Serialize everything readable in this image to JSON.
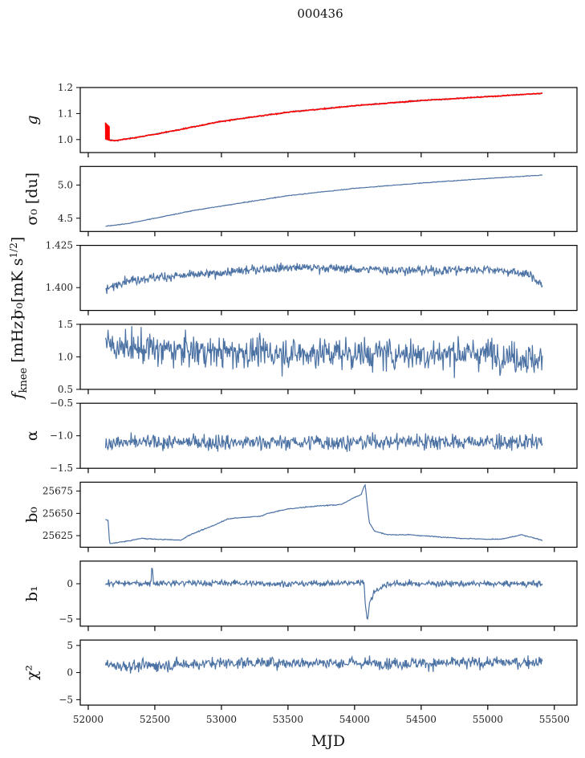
{
  "figure": {
    "title": "000436",
    "xlabel": "MJD"
  },
  "chart_data": {
    "type": "line",
    "title": "000436",
    "xlabel": "MJD",
    "xlim": [
      51940,
      55670
    ],
    "xticks": [
      52000,
      52500,
      53000,
      53500,
      54000,
      54500,
      55000,
      55500
    ],
    "xtick_labels": [
      "52000",
      "52500",
      "53000",
      "53500",
      "54000",
      "54500",
      "55000",
      "55500"
    ],
    "x_start": 52130,
    "x_end": 55410,
    "grid": false,
    "line_color": "#4c72a4",
    "overlay_color": "#ff0000",
    "panels": [
      {
        "name": "g",
        "ylabel": "g",
        "ylim": [
          0.95,
          1.2
        ],
        "yticks": [
          1.0,
          1.1,
          1.2
        ],
        "ytick_labels": [
          "1.0",
          "1.1",
          "1.2"
        ],
        "series": [
          {
            "name": "g",
            "color": "#4c72a4",
            "anchors": [
              [
                52130,
                1.005
              ],
              [
                52200,
                0.995
              ],
              [
                52500,
                1.02
              ],
              [
                53000,
                1.07
              ],
              [
                53500,
                1.105
              ],
              [
                54000,
                1.13
              ],
              [
                54500,
                1.15
              ],
              [
                55000,
                1.165
              ],
              [
                55410,
                1.178
              ]
            ],
            "noise": 0.002
          },
          {
            "name": "g-model",
            "color": "#ff0000",
            "anchors": [
              [
                52130,
                1.065
              ],
              [
                52135,
                1.0
              ],
              [
                52200,
                0.995
              ],
              [
                52500,
                1.02
              ],
              [
                53000,
                1.07
              ],
              [
                53500,
                1.105
              ],
              [
                54000,
                1.13
              ],
              [
                54500,
                1.15
              ],
              [
                55000,
                1.165
              ],
              [
                55410,
                1.178
              ]
            ],
            "noise": 0.0015
          }
        ]
      },
      {
        "name": "sigma0-du",
        "ylabel": "σ₀ [du]",
        "ylim": [
          4.3,
          5.28
        ],
        "yticks": [
          4.5,
          5.0
        ],
        "ytick_labels": [
          "4.5",
          "5.0"
        ],
        "series": [
          {
            "name": "sigma0",
            "color": "#4c72a4",
            "anchors": [
              [
                52130,
                4.38
              ],
              [
                52300,
                4.42
              ],
              [
                52800,
                4.62
              ],
              [
                53500,
                4.84
              ],
              [
                54000,
                4.95
              ],
              [
                54500,
                5.03
              ],
              [
                55000,
                5.1
              ],
              [
                55410,
                5.15
              ]
            ],
            "noise": 0.004
          }
        ]
      },
      {
        "name": "sigma0-mK",
        "ylabel": "σ₀[mK s^1/2]",
        "ylim": [
          1.3865,
          1.425
        ],
        "yticks": [
          1.4,
          1.425
        ],
        "ytick_labels": [
          "1.400",
          "1.425"
        ],
        "series": [
          {
            "name": "sigma0-temp",
            "color": "#4c72a4",
            "anchors": [
              [
                52130,
                1.398
              ],
              [
                52250,
                1.404
              ],
              [
                52500,
                1.406
              ],
              [
                52900,
                1.408
              ],
              [
                53300,
                1.411
              ],
              [
                53600,
                1.412
              ],
              [
                54000,
                1.411
              ],
              [
                54500,
                1.41
              ],
              [
                55000,
                1.411
              ],
              [
                55300,
                1.408
              ],
              [
                55410,
                1.402
              ]
            ],
            "noise": 0.0022
          }
        ]
      },
      {
        "name": "fknee",
        "ylabel": "f_knee [mHz]",
        "ylim": [
          0.5,
          1.5
        ],
        "yticks": [
          0.5,
          1.0,
          1.5
        ],
        "ytick_labels": [
          "0.5",
          "1.0",
          "1.5"
        ],
        "series": [
          {
            "name": "fknee",
            "color": "#4c72a4",
            "anchors": [
              [
                52130,
                1.2
              ],
              [
                52500,
                1.1
              ],
              [
                53000,
                1.08
              ],
              [
                53500,
                1.06
              ],
              [
                54000,
                1.05
              ],
              [
                54500,
                1.05
              ],
              [
                55000,
                1.05
              ],
              [
                55410,
                0.95
              ]
            ],
            "noise": 0.2
          }
        ]
      },
      {
        "name": "alpha",
        "ylabel": "α",
        "ylim": [
          -1.5,
          -0.5
        ],
        "yticks": [
          -1.5,
          -1.0,
          -0.5
        ],
        "ytick_labels": [
          "−1.5",
          "−1.0",
          "−0.5"
        ],
        "series": [
          {
            "name": "alpha",
            "color": "#4c72a4",
            "anchors": [
              [
                52130,
                -1.12
              ],
              [
                52500,
                -1.1
              ],
              [
                53000,
                -1.1
              ],
              [
                53500,
                -1.1
              ],
              [
                54000,
                -1.1
              ],
              [
                54500,
                -1.08
              ],
              [
                55000,
                -1.1
              ],
              [
                55410,
                -1.1
              ]
            ],
            "noise": 0.1
          }
        ]
      },
      {
        "name": "b0",
        "ylabel": "b₀",
        "ylim": [
          25612,
          25685
        ],
        "yticks": [
          25625,
          25650,
          25675
        ],
        "ytick_labels": [
          "25625",
          "25650",
          "25675"
        ],
        "series": [
          {
            "name": "b0",
            "color": "#4c72a4",
            "anchors": [
              [
                52130,
                25643
              ],
              [
                52150,
                25642
              ],
              [
                52160,
                25616
              ],
              [
                52300,
                25619
              ],
              [
                52400,
                25622
              ],
              [
                52500,
                25621
              ],
              [
                52700,
                25620
              ],
              [
                52750,
                25625
              ],
              [
                52950,
                25637
              ],
              [
                53050,
                25644
              ],
              [
                53300,
                25647
              ],
              [
                53350,
                25650
              ],
              [
                53500,
                25655
              ],
              [
                53700,
                25658
              ],
              [
                53900,
                25660
              ],
              [
                54000,
                25668
              ],
              [
                54050,
                25671
              ],
              [
                54070,
                25680
              ],
              [
                54080,
                25682
              ],
              [
                54095,
                25660
              ],
              [
                54110,
                25640
              ],
              [
                54150,
                25630
              ],
              [
                54250,
                25626
              ],
              [
                54400,
                25626
              ],
              [
                54600,
                25624
              ],
              [
                54800,
                25622
              ],
              [
                55000,
                25621
              ],
              [
                55100,
                25621
              ],
              [
                55200,
                25624
              ],
              [
                55250,
                25626
              ],
              [
                55300,
                25624
              ],
              [
                55410,
                25620
              ]
            ],
            "noise": 0.4
          }
        ]
      },
      {
        "name": "b1",
        "ylabel": "b₁",
        "ylim": [
          -6,
          3.2
        ],
        "yticks": [
          -5,
          0
        ],
        "ytick_labels": [
          "−5",
          "0"
        ],
        "series": [
          {
            "name": "b1",
            "color": "#4c72a4",
            "anchors": [
              [
                52130,
                0
              ],
              [
                52470,
                0.1
              ],
              [
                52480,
                2.8
              ],
              [
                52490,
                0.1
              ],
              [
                53000,
                0.1
              ],
              [
                53500,
                0
              ],
              [
                54000,
                0.1
              ],
              [
                54070,
                0.3
              ],
              [
                54080,
                -2.5
              ],
              [
                54095,
                -5.3
              ],
              [
                54110,
                -3
              ],
              [
                54150,
                -1
              ],
              [
                54250,
                0
              ],
              [
                55000,
                0
              ],
              [
                55410,
                0
              ]
            ],
            "noise": 0.35
          }
        ]
      },
      {
        "name": "chi2",
        "ylabel": "χ²",
        "ylim": [
          -6,
          6
        ],
        "yticks": [
          -5,
          0,
          5
        ],
        "ytick_labels": [
          "−5",
          "0",
          "5"
        ],
        "series": [
          {
            "name": "chi2",
            "color": "#4c72a4",
            "anchors": [
              [
                52130,
                1.3
              ],
              [
                52400,
                1.2
              ],
              [
                52700,
                1.5
              ],
              [
                53000,
                1.8
              ],
              [
                53500,
                1.8
              ],
              [
                54000,
                1.8
              ],
              [
                54500,
                1.7
              ],
              [
                55000,
                1.8
              ],
              [
                55410,
                2
              ]
            ],
            "noise": 0.9
          }
        ]
      }
    ]
  }
}
